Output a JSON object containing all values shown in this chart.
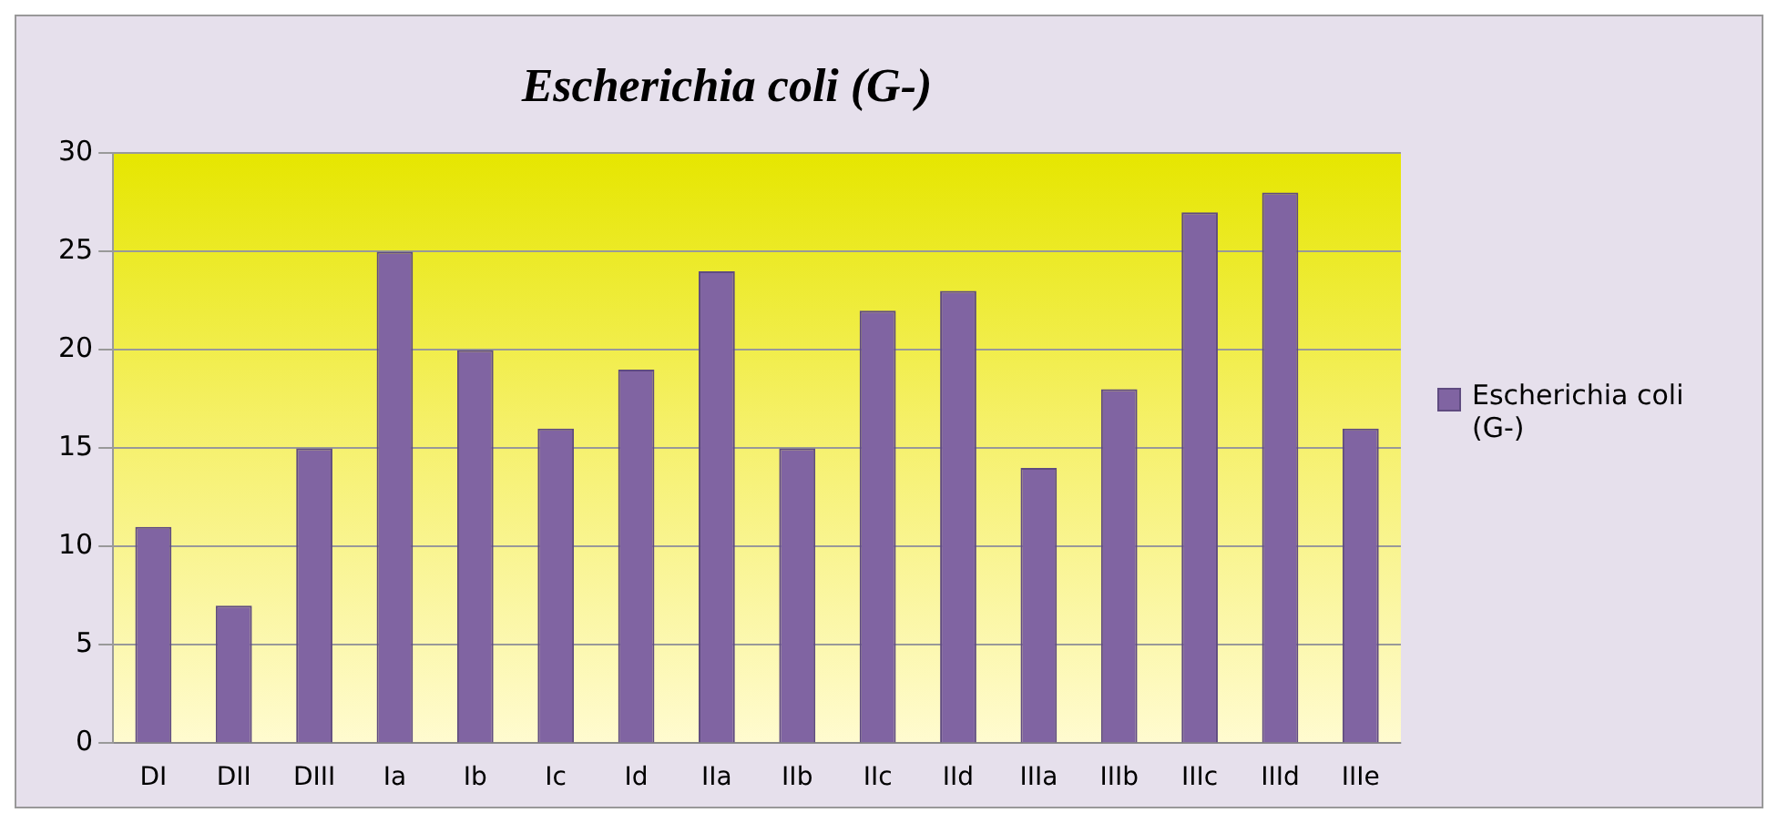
{
  "chart_data": {
    "type": "bar",
    "title": "Escherichia coli (G-)",
    "categories": [
      "DI",
      "DII",
      "DIII",
      "Ia",
      "Ib",
      "Ic",
      "Id",
      "IIa",
      "IIb",
      "IIc",
      "IId",
      "IIIa",
      "IIIb",
      "IIIc",
      "IIId",
      "IIIe"
    ],
    "series": [
      {
        "name": "Escherichia coli (G-)",
        "color": "#8064a2",
        "values": [
          11,
          7,
          15,
          25,
          20,
          16,
          19,
          24,
          15,
          22,
          23,
          14,
          18,
          27,
          28,
          16
        ]
      }
    ],
    "ylim": [
      0,
      30
    ],
    "yticks": [
      0,
      5,
      10,
      15,
      20,
      25,
      30
    ],
    "grid": "y",
    "legend": "right"
  }
}
